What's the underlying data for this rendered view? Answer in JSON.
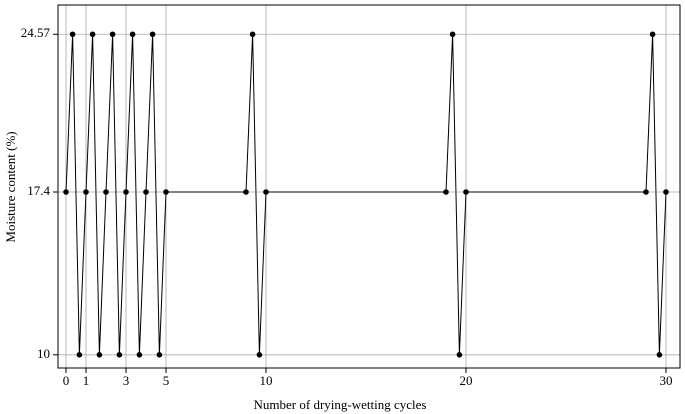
{
  "chart_data": {
    "type": "line",
    "x_label": "Number of drying-wetting cycles",
    "y_label": "Moisture content (%)",
    "x": [
      0,
      0.33,
      0.67,
      1,
      1.33,
      1.67,
      2,
      2.33,
      2.67,
      3,
      3.33,
      3.67,
      4,
      4.33,
      4.67,
      5,
      9,
      9.33,
      9.67,
      10,
      19,
      19.33,
      19.67,
      20,
      29,
      29.33,
      29.67,
      30
    ],
    "series": [
      {
        "color": "#000000",
        "values": [
          17.4,
          24.57,
          10,
          17.4,
          24.57,
          10,
          17.4,
          24.57,
          10,
          17.4,
          24.57,
          10,
          17.4,
          24.57,
          10,
          17.4,
          17.4,
          24.57,
          10,
          17.4,
          17.4,
          24.57,
          10,
          17.4,
          17.4,
          24.57,
          10,
          17.4
        ]
      }
    ],
    "xlim": [
      -0.4,
      30.7
    ],
    "ylim": [
      9.4,
      25.9
    ],
    "xticks": [
      0,
      1,
      3,
      5,
      10,
      20,
      30
    ],
    "yticks": [
      10,
      17.4,
      24.57
    ],
    "grid": true
  }
}
